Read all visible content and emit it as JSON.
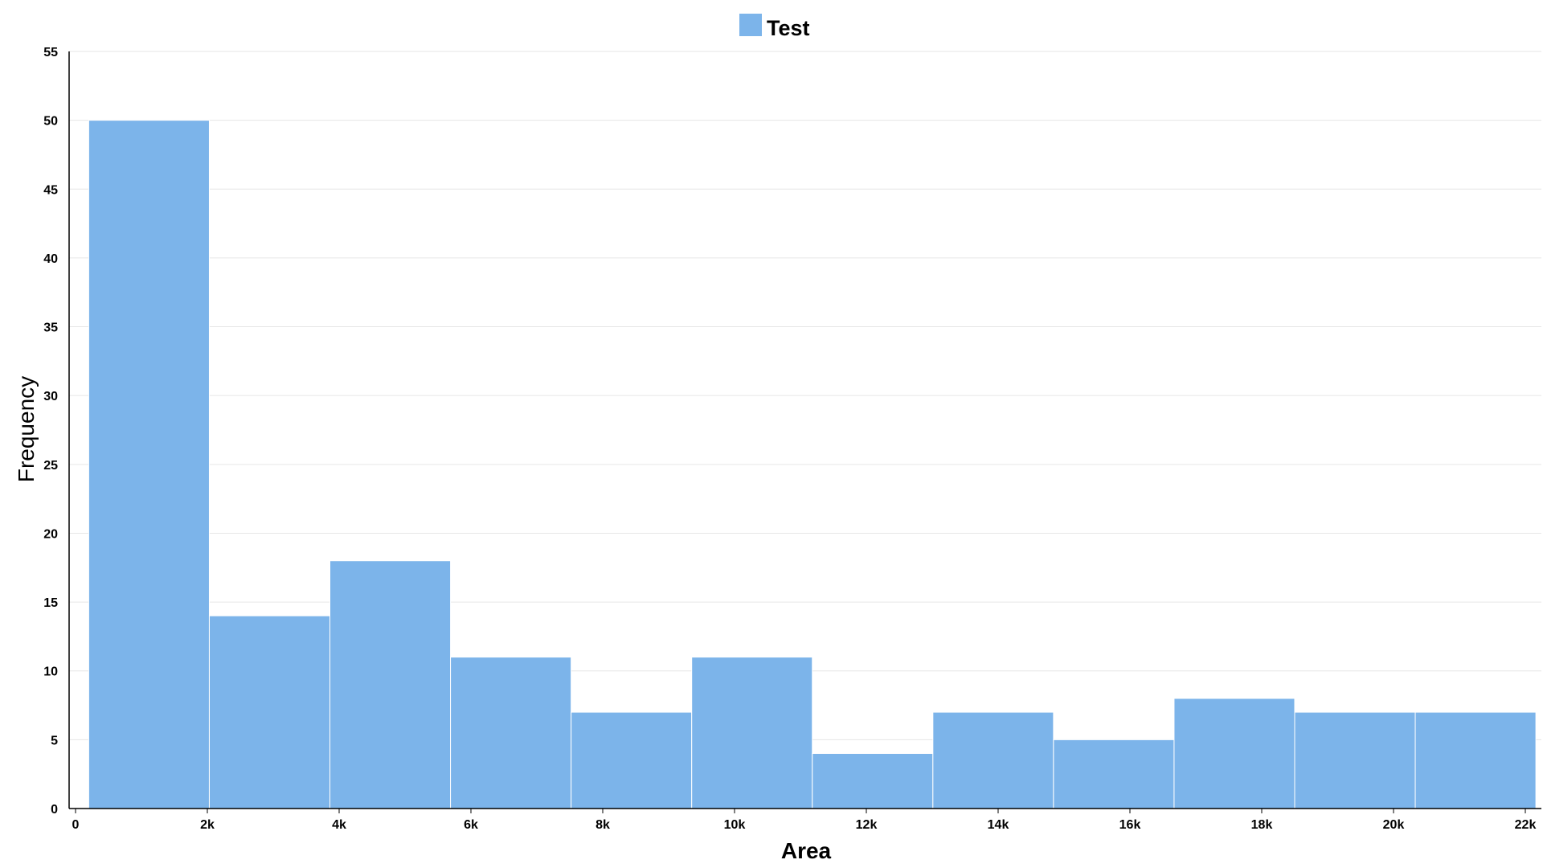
{
  "chart_data": {
    "type": "bar",
    "subtype": "histogram",
    "xlabel": "Area",
    "ylabel": "Frequency",
    "xlim": [
      0,
      22000
    ],
    "ylim": [
      0,
      55
    ],
    "x_ticks": [
      {
        "value": 0,
        "label": "0"
      },
      {
        "value": 2000,
        "label": "2k"
      },
      {
        "value": 4000,
        "label": "4k"
      },
      {
        "value": 6000,
        "label": "6k"
      },
      {
        "value": 8000,
        "label": "8k"
      },
      {
        "value": 10000,
        "label": "10k"
      },
      {
        "value": 12000,
        "label": "12k"
      },
      {
        "value": 14000,
        "label": "14k"
      },
      {
        "value": 16000,
        "label": "16k"
      },
      {
        "value": 18000,
        "label": "18k"
      },
      {
        "value": 20000,
        "label": "20k"
      },
      {
        "value": 22000,
        "label": "22k"
      }
    ],
    "y_ticks": [
      0,
      5,
      10,
      15,
      20,
      25,
      30,
      35,
      40,
      45,
      50,
      55
    ],
    "grid": true,
    "legend": {
      "position": "top-center",
      "entries": [
        "Test"
      ]
    },
    "series": [
      {
        "name": "Test",
        "color": "#7cb4ea",
        "bins": [
          {
            "x0": 200,
            "x1": 2030,
            "value": 50
          },
          {
            "x0": 2030,
            "x1": 3860,
            "value": 14
          },
          {
            "x0": 3860,
            "x1": 5690,
            "value": 18
          },
          {
            "x0": 5690,
            "x1": 7520,
            "value": 11
          },
          {
            "x0": 7520,
            "x1": 9350,
            "value": 7
          },
          {
            "x0": 9350,
            "x1": 11180,
            "value": 11
          },
          {
            "x0": 11180,
            "x1": 13010,
            "value": 4
          },
          {
            "x0": 13010,
            "x1": 14840,
            "value": 7
          },
          {
            "x0": 14840,
            "x1": 16670,
            "value": 5
          },
          {
            "x0": 16670,
            "x1": 18500,
            "value": 8
          },
          {
            "x0": 18500,
            "x1": 20330,
            "value": 7
          },
          {
            "x0": 20330,
            "x1": 22160,
            "value": 7
          }
        ]
      }
    ]
  }
}
